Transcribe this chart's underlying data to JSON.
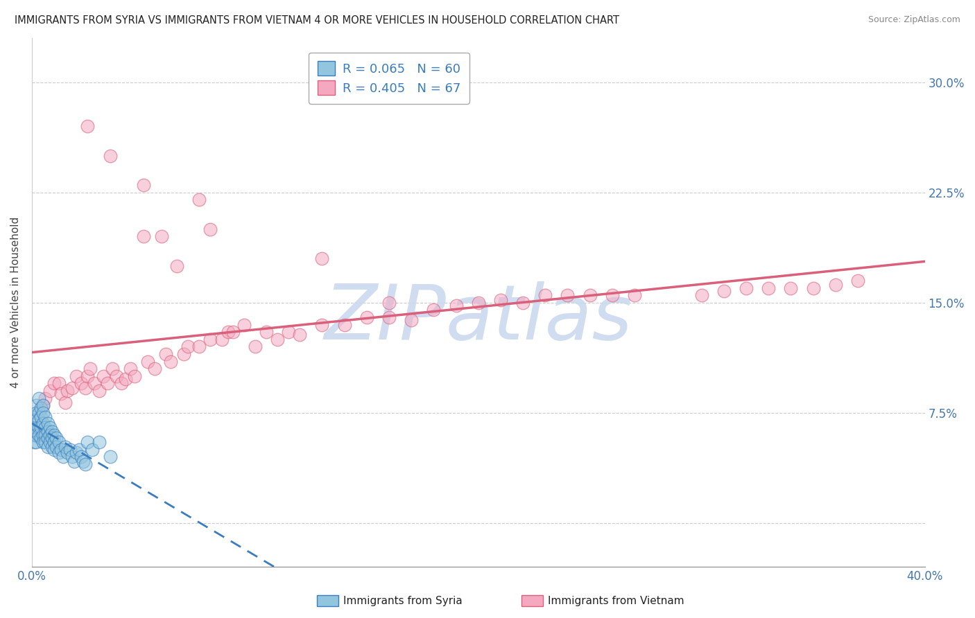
{
  "title": "IMMIGRANTS FROM SYRIA VS IMMIGRANTS FROM VIETNAM 4 OR MORE VEHICLES IN HOUSEHOLD CORRELATION CHART",
  "source": "Source: ZipAtlas.com",
  "ylabel": "4 or more Vehicles in Household",
  "xlim": [
    0.0,
    0.4
  ],
  "ylim": [
    -0.03,
    0.33
  ],
  "xticks": [
    0.0,
    0.05,
    0.1,
    0.15,
    0.2,
    0.25,
    0.3,
    0.35,
    0.4
  ],
  "xticklabels": [
    "0.0%",
    "",
    "",
    "",
    "",
    "",
    "",
    "",
    "40.0%"
  ],
  "yticks": [
    0.0,
    0.075,
    0.15,
    0.225,
    0.3
  ],
  "yticklabels": [
    "",
    "7.5%",
    "15.0%",
    "22.5%",
    "30.0%"
  ],
  "syria_R": 0.065,
  "syria_N": 60,
  "vietnam_R": 0.405,
  "vietnam_N": 67,
  "syria_color": "#92c5de",
  "vietnam_color": "#f4a9c0",
  "syria_line_color": "#3a7dbf",
  "vietnam_line_color": "#d95f7a",
  "background_color": "#ffffff",
  "grid_color": "#cccccc",
  "watermark": "ZIPatlas",
  "watermark_color": "#c8d8ee",
  "legend_label_syria": "Immigrants from Syria",
  "legend_label_vietnam": "Immigrants from Vietnam",
  "syria_x": [
    0.001,
    0.001,
    0.001,
    0.002,
    0.002,
    0.002,
    0.002,
    0.002,
    0.002,
    0.003,
    0.003,
    0.003,
    0.003,
    0.003,
    0.004,
    0.004,
    0.004,
    0.004,
    0.005,
    0.005,
    0.005,
    0.005,
    0.005,
    0.006,
    0.006,
    0.006,
    0.006,
    0.007,
    0.007,
    0.007,
    0.007,
    0.008,
    0.008,
    0.008,
    0.009,
    0.009,
    0.009,
    0.01,
    0.01,
    0.01,
    0.011,
    0.011,
    0.012,
    0.012,
    0.013,
    0.014,
    0.015,
    0.016,
    0.017,
    0.018,
    0.019,
    0.02,
    0.021,
    0.022,
    0.023,
    0.024,
    0.025,
    0.027,
    0.03,
    0.035
  ],
  "syria_y": [
    0.065,
    0.06,
    0.055,
    0.08,
    0.075,
    0.07,
    0.065,
    0.06,
    0.055,
    0.085,
    0.075,
    0.07,
    0.065,
    0.06,
    0.078,
    0.072,
    0.065,
    0.058,
    0.08,
    0.075,
    0.068,
    0.06,
    0.055,
    0.072,
    0.065,
    0.06,
    0.055,
    0.068,
    0.062,
    0.058,
    0.052,
    0.065,
    0.06,
    0.055,
    0.062,
    0.058,
    0.052,
    0.06,
    0.055,
    0.05,
    0.058,
    0.052,
    0.055,
    0.048,
    0.05,
    0.045,
    0.052,
    0.048,
    0.05,
    0.045,
    0.042,
    0.048,
    0.05,
    0.045,
    0.042,
    0.04,
    0.055,
    0.05,
    0.055,
    0.045
  ],
  "vietnam_x": [
    0.005,
    0.006,
    0.008,
    0.01,
    0.012,
    0.013,
    0.015,
    0.016,
    0.018,
    0.02,
    0.022,
    0.024,
    0.025,
    0.026,
    0.028,
    0.03,
    0.032,
    0.034,
    0.036,
    0.038,
    0.04,
    0.042,
    0.044,
    0.046,
    0.05,
    0.052,
    0.055,
    0.058,
    0.06,
    0.062,
    0.065,
    0.068,
    0.07,
    0.075,
    0.08,
    0.085,
    0.088,
    0.09,
    0.095,
    0.1,
    0.105,
    0.11,
    0.115,
    0.12,
    0.13,
    0.14,
    0.15,
    0.16,
    0.17,
    0.18,
    0.19,
    0.2,
    0.21,
    0.22,
    0.23,
    0.24,
    0.25,
    0.26,
    0.27,
    0.3,
    0.31,
    0.32,
    0.33,
    0.34,
    0.35,
    0.36,
    0.37
  ],
  "vietnam_y": [
    0.08,
    0.085,
    0.09,
    0.095,
    0.095,
    0.088,
    0.082,
    0.09,
    0.092,
    0.1,
    0.095,
    0.092,
    0.1,
    0.105,
    0.095,
    0.09,
    0.1,
    0.095,
    0.105,
    0.1,
    0.095,
    0.098,
    0.105,
    0.1,
    0.195,
    0.11,
    0.105,
    0.195,
    0.115,
    0.11,
    0.175,
    0.115,
    0.12,
    0.12,
    0.125,
    0.125,
    0.13,
    0.13,
    0.135,
    0.12,
    0.13,
    0.125,
    0.13,
    0.128,
    0.135,
    0.135,
    0.14,
    0.14,
    0.138,
    0.145,
    0.148,
    0.15,
    0.152,
    0.15,
    0.155,
    0.155,
    0.155,
    0.155,
    0.155,
    0.155,
    0.158,
    0.16,
    0.16,
    0.16,
    0.16,
    0.162,
    0.165
  ],
  "vietnam_outlier_x": [
    0.025,
    0.035,
    0.05,
    0.075,
    0.08,
    0.13,
    0.16
  ],
  "vietnam_outlier_y": [
    0.27,
    0.25,
    0.23,
    0.22,
    0.2,
    0.18,
    0.15
  ]
}
